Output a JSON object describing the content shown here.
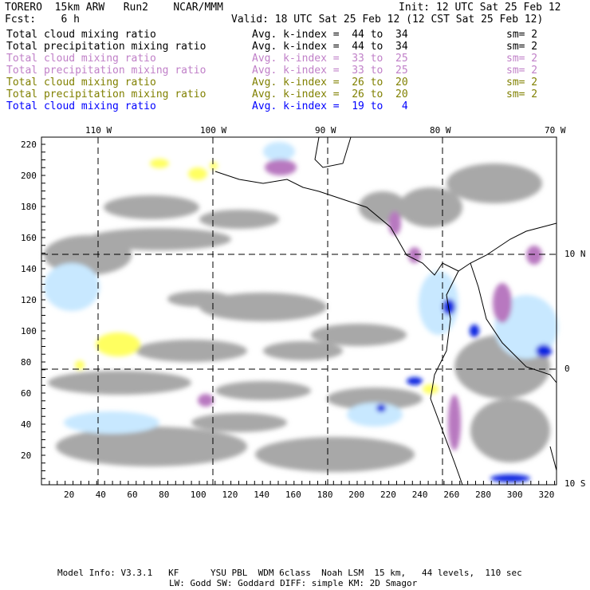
{
  "header": {
    "title": "TORERO  15km ARW   Run2    NCAR/MMM",
    "init": "Init: 12 UTC Sat 25 Feb 12",
    "fcst": "Fcst:    6 h",
    "valid": "Valid: 18 UTC Sat 25 Feb 12 (12 CST Sat 25 Feb 12)"
  },
  "legend": [
    {
      "field": "Total cloud mixing ratio",
      "range": "Avg. k-index =  44 to  34",
      "sm": "sm= 2",
      "color": "#000000"
    },
    {
      "field": "Total precipitation mixing ratio",
      "range": "Avg. k-index =  44 to  34",
      "sm": "sm= 2",
      "color": "#000000"
    },
    {
      "field": "Total cloud mixing ratio",
      "range": "Avg. k-index =  33 to  25",
      "sm": "sm= 2",
      "color": "#c080c8"
    },
    {
      "field": "Total precipitation mixing ratio",
      "range": "Avg. k-index =  33 to  25",
      "sm": "sm= 2",
      "color": "#c080c8"
    },
    {
      "field": "Total cloud mixing ratio",
      "range": "Avg. k-index =  26 to  20",
      "sm": "sm= 2",
      "color": "#808000"
    },
    {
      "field": "Total precipitation mixing ratio",
      "range": "Avg. k-index =  26 to  20",
      "sm": "sm= 2",
      "color": "#808000"
    },
    {
      "field": "Total cloud mixing ratio",
      "range": "Avg. k-index =  19 to   4",
      "sm": "",
      "color": "#0000ff"
    }
  ],
  "map": {
    "lon_labels": [
      "110 W",
      "100 W",
      "90 W",
      "80 W",
      "70 W"
    ],
    "lat_labels": [
      "10 N",
      "0",
      "10 S"
    ],
    "y_ticks": [
      "220",
      "200",
      "180",
      "160",
      "140",
      "120",
      "100",
      "80",
      "60",
      "40",
      "20"
    ],
    "x_ticks": [
      "20",
      "40",
      "60",
      "80",
      "100",
      "120",
      "140",
      "160",
      "180",
      "200",
      "220",
      "240",
      "260",
      "280",
      "300",
      "320"
    ]
  },
  "footer": {
    "line1": "Model Info: V3.3.1   KF      YSU PBL  WDM 6class  Noah LSM  15 km,   44 levels,  110 sec",
    "line2": "LW: Godd SW: Goddard DIFF: simple KM: 2D Smagor"
  }
}
